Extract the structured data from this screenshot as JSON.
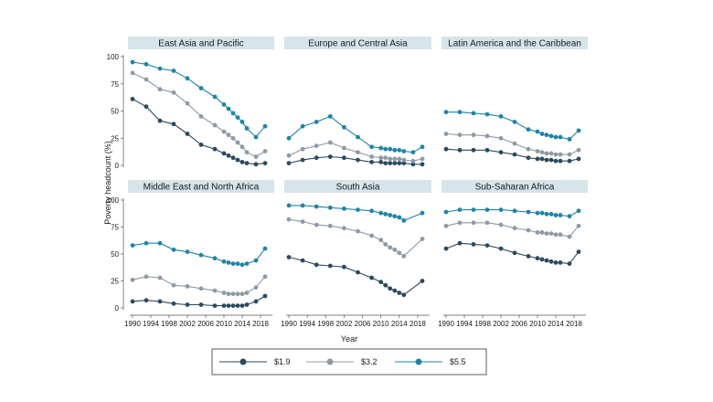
{
  "chart_data": {
    "type": "line",
    "xlabel": "Year",
    "ylabel": "Poverty headcount (%)",
    "ylim": [
      0,
      100
    ],
    "yticks": [
      0,
      25,
      50,
      75,
      100
    ],
    "xlim": [
      1990,
      2020
    ],
    "xticks": [
      1990,
      1994,
      1998,
      2002,
      2006,
      2010,
      2014,
      2018
    ],
    "series_names": [
      "$1.9",
      "$3.2",
      "$5.5"
    ],
    "series_colors": [
      "#2b4a60",
      "#8e9aa6",
      "#1e85a8"
    ],
    "x": [
      1990,
      1993,
      1996,
      1999,
      2002,
      2005,
      2008,
      2010,
      2011,
      2012,
      2013,
      2014,
      2015,
      2017,
      2019
    ],
    "panels": [
      {
        "title": "East Asia and Pacific",
        "series": [
          {
            "name": "$1.9",
            "values": [
              61,
              54,
              41,
              38,
              29,
              19,
              15,
              11,
              9,
              7,
              5,
              3,
              2,
              1,
              2
            ]
          },
          {
            "name": "$3.2",
            "values": [
              85,
              79,
              70,
              67,
              57,
              45,
              37,
              31,
              28,
              25,
              21,
              17,
              12,
              8,
              13
            ]
          },
          {
            "name": "$5.5",
            "values": [
              95,
              93,
              89,
              87,
              80,
              71,
              63,
              56,
              52,
              48,
              44,
              40,
              34,
              26,
              36
            ]
          }
        ]
      },
      {
        "title": "Europe and Central Asia",
        "series": [
          {
            "name": "$1.9",
            "values": [
              2,
              5,
              7,
              8,
              7,
              5,
              3,
              3,
              2,
              2,
              2,
              2,
              2,
              1,
              1
            ]
          },
          {
            "name": "$3.2",
            "values": [
              9,
              15,
              18,
              21,
              16,
              12,
              8,
              7,
              7,
              6,
              6,
              6,
              5,
              4,
              6
            ]
          },
          {
            "name": "$5.5",
            "values": [
              25,
              36,
              40,
              45,
              35,
              26,
              17,
              16,
              15,
              15,
              14,
              14,
              13,
              12,
              17
            ]
          }
        ]
      },
      {
        "title": "Latin America and the Caribbean",
        "series": [
          {
            "name": "$1.9",
            "values": [
              15,
              14,
              14,
              14,
              12,
              10,
              7,
              6,
              6,
              5,
              5,
              4,
              4,
              4,
              6
            ]
          },
          {
            "name": "$3.2",
            "values": [
              29,
              28,
              28,
              27,
              25,
              20,
              15,
              13,
              12,
              11,
              11,
              10,
              10,
              10,
              14
            ]
          },
          {
            "name": "$5.5",
            "values": [
              49,
              49,
              48,
              47,
              45,
              40,
              33,
              31,
              29,
              28,
              27,
              26,
              26,
              24,
              32
            ]
          }
        ]
      },
      {
        "title": "Middle East and North Africa",
        "series": [
          {
            "name": "$1.9",
            "values": [
              6,
              7,
              6,
              4,
              3,
              3,
              2,
              2,
              2,
              2,
              2,
              2,
              3,
              6,
              11
            ]
          },
          {
            "name": "$3.2",
            "values": [
              26,
              29,
              28,
              21,
              20,
              18,
              16,
              14,
              13,
              13,
              13,
              13,
              14,
              19,
              29
            ]
          },
          {
            "name": "$5.5",
            "values": [
              58,
              60,
              60,
              54,
              52,
              49,
              46,
              43,
              42,
              41,
              41,
              40,
              41,
              44,
              55
            ]
          }
        ]
      },
      {
        "title": "South Asia",
        "series": [
          {
            "name": "$1.9",
            "values": [
              47,
              44,
              40,
              39,
              38,
              33,
              28,
              24,
              21,
              18,
              16,
              14,
              12,
              null,
              25
            ]
          },
          {
            "name": "$3.2",
            "values": [
              82,
              80,
              77,
              76,
              74,
              71,
              67,
              63,
              59,
              56,
              54,
              51,
              48,
              null,
              64
            ]
          },
          {
            "name": "$5.5",
            "values": [
              95,
              95,
              94,
              93,
              92,
              91,
              90,
              88,
              87,
              86,
              85,
              84,
              81,
              null,
              88
            ]
          }
        ]
      },
      {
        "title": "Sub-Saharan Africa",
        "series": [
          {
            "name": "$1.9",
            "values": [
              55,
              60,
              59,
              58,
              55,
              51,
              48,
              46,
              45,
              44,
              43,
              42,
              42,
              41,
              52
            ]
          },
          {
            "name": "$3.2",
            "values": [
              76,
              79,
              79,
              79,
              77,
              74,
              72,
              70,
              70,
              69,
              69,
              68,
              68,
              66,
              76
            ]
          },
          {
            "name": "$5.5",
            "values": [
              89,
              91,
              91,
              91,
              91,
              90,
              89,
              88,
              88,
              87,
              87,
              86,
              86,
              85,
              90
            ]
          }
        ]
      }
    ]
  }
}
